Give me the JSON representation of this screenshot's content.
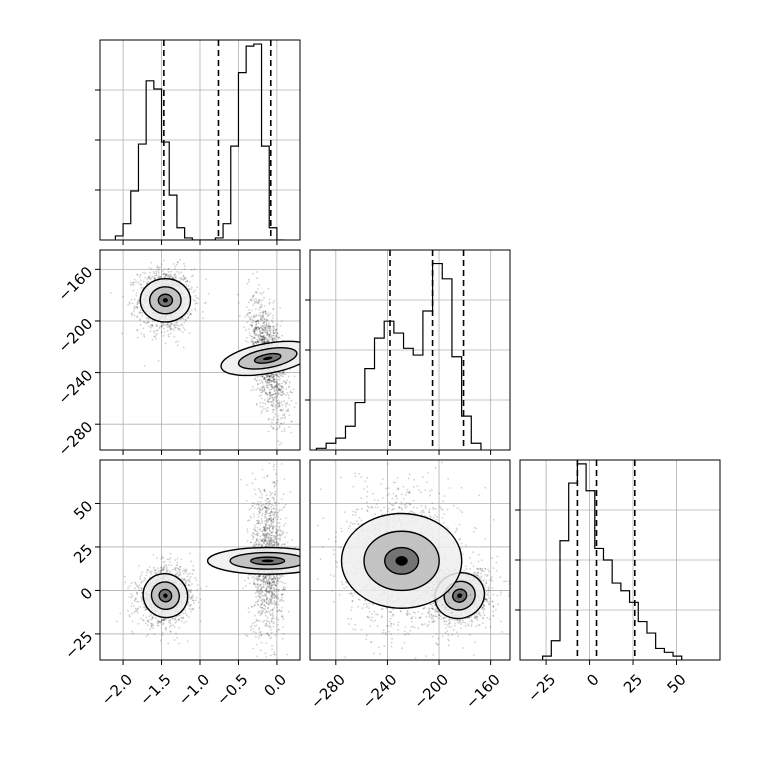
{
  "chart_data": {
    "type": "corner",
    "grid": true,
    "title": "",
    "parameters": [
      {
        "index": 0,
        "range": [
          -2.3,
          0.3
        ],
        "ticks": [
          -2.0,
          -1.5,
          -1.0,
          -0.5,
          0.0
        ],
        "tick_labels": [
          "−2.0",
          "−1.5",
          "−1.0",
          "−0.5",
          "0.0"
        ],
        "quantiles": [
          -1.47,
          -0.76,
          -0.08
        ],
        "histogram": {
          "bin_start": -2.1,
          "bin_width": 0.1,
          "counts": [
            2,
            8,
            24,
            47,
            78,
            74,
            48,
            22,
            6,
            1,
            0,
            0,
            0,
            1,
            8,
            46,
            82,
            95,
            96,
            46,
            6,
            0
          ],
          "ymax": 98
        }
      },
      {
        "index": 1,
        "range": [
          -300,
          -145
        ],
        "ticks": [
          -280,
          -240,
          -200,
          -160
        ],
        "tick_labels": [
          "−280",
          "−240",
          "−200",
          "−160"
        ],
        "quantiles": [
          -238,
          -205,
          -181
        ],
        "histogram": {
          "bin_start": -295,
          "bin_width": 7.5,
          "counts": [
            1,
            4,
            7,
            14,
            28,
            48,
            66,
            76,
            69,
            60,
            56,
            82,
            110,
            101,
            55,
            20,
            4
          ],
          "ymax": 118
        }
      },
      {
        "index": 2,
        "range": [
          -40,
          75
        ],
        "ticks": [
          -25,
          0,
          25,
          50
        ],
        "tick_labels": [
          "−25",
          "0",
          "25",
          "50"
        ],
        "quantiles": [
          -7,
          4,
          26
        ],
        "histogram": {
          "bin_start": -27,
          "bin_width": 5,
          "counts": [
            1,
            5,
            31,
            46,
            51,
            44,
            29,
            26,
            20,
            18,
            15,
            10,
            7,
            3,
            2,
            1
          ],
          "ymax": 52
        }
      }
    ],
    "pairs": [
      {
        "x_param": 0,
        "y_param": 1,
        "clusters": [
          {
            "cx": -1.45,
            "cy": -184,
            "sx": 0.13,
            "sy": 9,
            "rho": 0.0,
            "n": 1300,
            "levels": [
              0.45,
              1.0,
              1.6
            ]
          },
          {
            "cx": -0.12,
            "cy": -229,
            "sx": 0.09,
            "sy": 17,
            "rho": -0.55,
            "n": 1300,
            "levels": [
              0.45,
              1.0,
              1.6
            ]
          }
        ]
      },
      {
        "x_param": 0,
        "y_param": 2,
        "clusters": [
          {
            "cx": -1.45,
            "cy": -3,
            "sx": 0.13,
            "sy": 6,
            "rho": 0.1,
            "n": 1300,
            "levels": [
              0.45,
              1.0,
              1.6
            ]
          },
          {
            "cx": -0.12,
            "cy": 17,
            "sx": 0.08,
            "sy": 16,
            "rho": 0.0,
            "n": 1300,
            "levels": [
              0.45,
              1.0,
              1.6
            ]
          }
        ]
      },
      {
        "x_param": 1,
        "y_param": 2,
        "clusters": [
          {
            "cx": -184,
            "cy": -3,
            "sx": 9,
            "sy": 6,
            "rho": 0.1,
            "n": 1300,
            "levels": [
              0.45,
              1.0,
              1.6
            ]
          },
          {
            "cx": -229,
            "cy": 17,
            "sx": 17,
            "sy": 16,
            "rho": 0.0,
            "n": 1300,
            "levels": [
              0.45,
              1.0,
              1.6
            ]
          }
        ]
      }
    ]
  }
}
